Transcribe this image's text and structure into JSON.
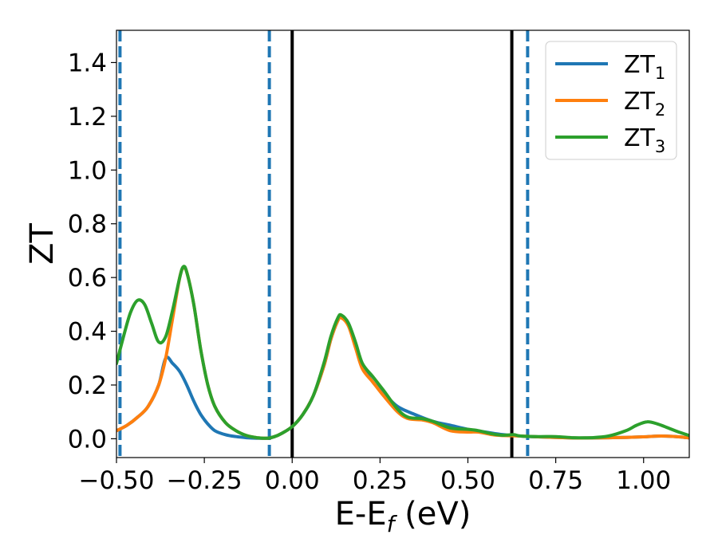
{
  "chart_data": {
    "type": "line",
    "title": "",
    "xlabel": {
      "main": "E-E",
      "sub": "f",
      "tail": " (eV)"
    },
    "ylabel": "ZT",
    "xlim": [
      -0.5,
      1.13
    ],
    "ylim": [
      -0.07,
      1.52
    ],
    "x_ticks": [
      -0.5,
      -0.25,
      0.0,
      0.25,
      0.5,
      0.75,
      1.0
    ],
    "x_tick_labels": [
      "−0.50",
      "−0.25",
      "0.00",
      "0.25",
      "0.50",
      "0.75",
      "1.00"
    ],
    "y_ticks": [
      0.0,
      0.2,
      0.4,
      0.6,
      0.8,
      1.0,
      1.2,
      1.4
    ],
    "y_tick_labels": [
      "0.0",
      "0.2",
      "0.4",
      "0.6",
      "0.8",
      "1.0",
      "1.2",
      "1.4"
    ],
    "grid": false,
    "legend_position": "top-right",
    "vertical_lines": [
      {
        "x": -0.49,
        "style": "dashed",
        "color": "#1f77b4"
      },
      {
        "x": -0.065,
        "style": "dashed",
        "color": "#1f77b4"
      },
      {
        "x": 0.0,
        "style": "solid",
        "color": "#000000"
      },
      {
        "x": 0.625,
        "style": "solid",
        "color": "#000000"
      },
      {
        "x": 0.67,
        "style": "dashed",
        "color": "#1f77b4"
      }
    ],
    "series": [
      {
        "name": "ZT",
        "subscript": "1",
        "color": "#1f77b4",
        "points": [
          [
            -0.5,
            0.03
          ],
          [
            -0.47,
            0.05
          ],
          [
            -0.44,
            0.08
          ],
          [
            -0.41,
            0.12
          ],
          [
            -0.38,
            0.2
          ],
          [
            -0.36,
            0.3
          ],
          [
            -0.34,
            0.28
          ],
          [
            -0.32,
            0.25
          ],
          [
            -0.3,
            0.2
          ],
          [
            -0.28,
            0.14
          ],
          [
            -0.26,
            0.09
          ],
          [
            -0.24,
            0.055
          ],
          [
            -0.22,
            0.03
          ],
          [
            -0.19,
            0.015
          ],
          [
            -0.16,
            0.008
          ],
          [
            -0.13,
            0.004
          ],
          [
            -0.1,
            0.002
          ],
          [
            -0.07,
            0.002
          ],
          [
            -0.05,
            0.008
          ],
          [
            -0.03,
            0.02
          ],
          [
            0.0,
            0.045
          ],
          [
            0.03,
            0.09
          ],
          [
            0.06,
            0.16
          ],
          [
            0.09,
            0.27
          ],
          [
            0.11,
            0.37
          ],
          [
            0.13,
            0.44
          ],
          [
            0.14,
            0.455
          ],
          [
            0.16,
            0.43
          ],
          [
            0.18,
            0.35
          ],
          [
            0.2,
            0.27
          ],
          [
            0.23,
            0.21
          ],
          [
            0.26,
            0.17
          ],
          [
            0.3,
            0.12
          ],
          [
            0.35,
            0.09
          ],
          [
            0.4,
            0.065
          ],
          [
            0.45,
            0.05
          ],
          [
            0.5,
            0.035
          ],
          [
            0.55,
            0.025
          ],
          [
            0.6,
            0.015
          ],
          [
            0.65,
            0.01
          ],
          [
            0.7,
            0.007
          ],
          [
            0.75,
            0.005
          ],
          [
            0.8,
            0.003
          ],
          [
            0.85,
            0.003
          ],
          [
            0.9,
            0.004
          ],
          [
            0.95,
            0.005
          ],
          [
            1.0,
            0.007
          ],
          [
            1.05,
            0.01
          ],
          [
            1.1,
            0.007
          ],
          [
            1.13,
            0.003
          ]
        ]
      },
      {
        "name": "ZT",
        "subscript": "2",
        "color": "#ff7f0e",
        "points": [
          [
            -0.5,
            0.03
          ],
          [
            -0.47,
            0.05
          ],
          [
            -0.44,
            0.08
          ],
          [
            -0.41,
            0.12
          ],
          [
            -0.38,
            0.2
          ],
          [
            -0.36,
            0.3
          ],
          [
            -0.34,
            0.45
          ],
          [
            -0.32,
            0.6
          ],
          [
            -0.31,
            0.635
          ],
          [
            -0.3,
            0.62
          ],
          [
            -0.28,
            0.5
          ],
          [
            -0.26,
            0.33
          ],
          [
            -0.24,
            0.2
          ],
          [
            -0.22,
            0.12
          ],
          [
            -0.19,
            0.06
          ],
          [
            -0.16,
            0.03
          ],
          [
            -0.13,
            0.012
          ],
          [
            -0.1,
            0.004
          ],
          [
            -0.07,
            0.002
          ],
          [
            -0.05,
            0.008
          ],
          [
            -0.03,
            0.02
          ],
          [
            0.0,
            0.045
          ],
          [
            0.03,
            0.09
          ],
          [
            0.06,
            0.16
          ],
          [
            0.09,
            0.27
          ],
          [
            0.11,
            0.37
          ],
          [
            0.13,
            0.44
          ],
          [
            0.14,
            0.45
          ],
          [
            0.16,
            0.42
          ],
          [
            0.18,
            0.34
          ],
          [
            0.2,
            0.26
          ],
          [
            0.23,
            0.21
          ],
          [
            0.26,
            0.16
          ],
          [
            0.3,
            0.1
          ],
          [
            0.33,
            0.075
          ],
          [
            0.37,
            0.07
          ],
          [
            0.4,
            0.06
          ],
          [
            0.45,
            0.03
          ],
          [
            0.5,
            0.025
          ],
          [
            0.53,
            0.025
          ],
          [
            0.57,
            0.015
          ],
          [
            0.6,
            0.012
          ],
          [
            0.65,
            0.01
          ],
          [
            0.7,
            0.007
          ],
          [
            0.75,
            0.005
          ],
          [
            0.8,
            0.003
          ],
          [
            0.85,
            0.003
          ],
          [
            0.9,
            0.004
          ],
          [
            0.95,
            0.005
          ],
          [
            1.0,
            0.007
          ],
          [
            1.05,
            0.01
          ],
          [
            1.1,
            0.007
          ],
          [
            1.13,
            0.003
          ]
        ]
      },
      {
        "name": "ZT",
        "subscript": "3",
        "color": "#2ca02c",
        "points": [
          [
            -0.5,
            0.28
          ],
          [
            -0.48,
            0.38
          ],
          [
            -0.46,
            0.47
          ],
          [
            -0.44,
            0.515
          ],
          [
            -0.42,
            0.5
          ],
          [
            -0.4,
            0.43
          ],
          [
            -0.38,
            0.36
          ],
          [
            -0.36,
            0.38
          ],
          [
            -0.34,
            0.48
          ],
          [
            -0.32,
            0.6
          ],
          [
            -0.31,
            0.64
          ],
          [
            -0.3,
            0.62
          ],
          [
            -0.28,
            0.5
          ],
          [
            -0.26,
            0.33
          ],
          [
            -0.24,
            0.2
          ],
          [
            -0.22,
            0.12
          ],
          [
            -0.19,
            0.06
          ],
          [
            -0.16,
            0.03
          ],
          [
            -0.13,
            0.012
          ],
          [
            -0.1,
            0.004
          ],
          [
            -0.07,
            0.002
          ],
          [
            -0.05,
            0.008
          ],
          [
            -0.03,
            0.02
          ],
          [
            0.0,
            0.045
          ],
          [
            0.03,
            0.09
          ],
          [
            0.06,
            0.16
          ],
          [
            0.09,
            0.28
          ],
          [
            0.11,
            0.38
          ],
          [
            0.13,
            0.45
          ],
          [
            0.14,
            0.46
          ],
          [
            0.16,
            0.43
          ],
          [
            0.18,
            0.36
          ],
          [
            0.2,
            0.28
          ],
          [
            0.23,
            0.23
          ],
          [
            0.26,
            0.18
          ],
          [
            0.3,
            0.11
          ],
          [
            0.33,
            0.08
          ],
          [
            0.37,
            0.075
          ],
          [
            0.4,
            0.065
          ],
          [
            0.45,
            0.04
          ],
          [
            0.5,
            0.035
          ],
          [
            0.53,
            0.03
          ],
          [
            0.57,
            0.018
          ],
          [
            0.6,
            0.013
          ],
          [
            0.63,
            0.015
          ],
          [
            0.65,
            0.01
          ],
          [
            0.7,
            0.008
          ],
          [
            0.75,
            0.008
          ],
          [
            0.8,
            0.004
          ],
          [
            0.85,
            0.004
          ],
          [
            0.9,
            0.01
          ],
          [
            0.95,
            0.03
          ],
          [
            0.98,
            0.05
          ],
          [
            1.01,
            0.063
          ],
          [
            1.04,
            0.055
          ],
          [
            1.07,
            0.04
          ],
          [
            1.1,
            0.025
          ],
          [
            1.13,
            0.012
          ]
        ]
      }
    ]
  }
}
